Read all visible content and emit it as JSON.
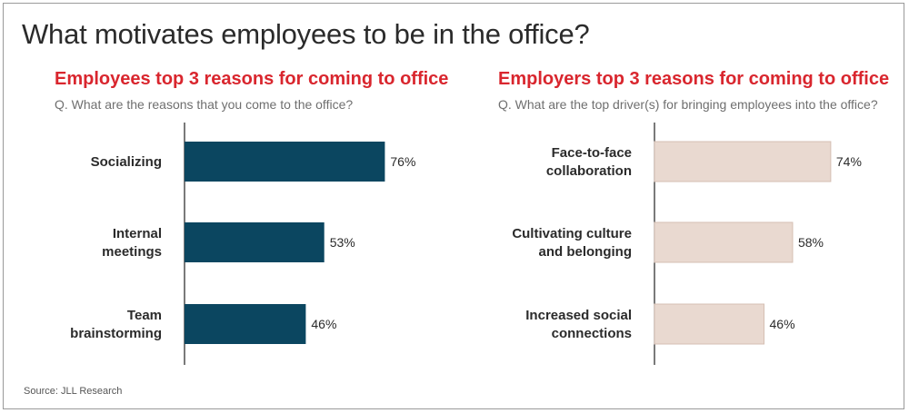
{
  "title": "What motivates employees to be in the office?",
  "source": "Source: JLL Research",
  "chart_data": [
    {
      "type": "bar",
      "orientation": "horizontal",
      "title": "Employees top 3 reasons for coming to office",
      "subtitle": "Q. What are the reasons that you come to the office?",
      "categories": [
        [
          "Socializing"
        ],
        [
          "Internal",
          "meetings"
        ],
        [
          "Team",
          "brainstorming"
        ]
      ],
      "values": [
        76,
        53,
        46
      ],
      "value_labels": [
        "76%",
        "53%",
        "46%"
      ],
      "xlim": [
        0,
        100
      ],
      "color": "#0b4660",
      "grid": false
    },
    {
      "type": "bar",
      "orientation": "horizontal",
      "title": "Employers top 3 reasons for coming to office",
      "subtitle": "Q. What are the top driver(s) for bringing employees into the office?",
      "categories": [
        [
          "Face-to-face",
          "collaboration"
        ],
        [
          "Cultivating culture",
          "and belonging"
        ],
        [
          "Increased social",
          "connections"
        ]
      ],
      "values": [
        74,
        58,
        46
      ],
      "value_labels": [
        "74%",
        "58%",
        "46%"
      ],
      "xlim": [
        0,
        100
      ],
      "color": "#e9d9d0",
      "stroke": "#d5bfb3",
      "grid": false
    }
  ]
}
